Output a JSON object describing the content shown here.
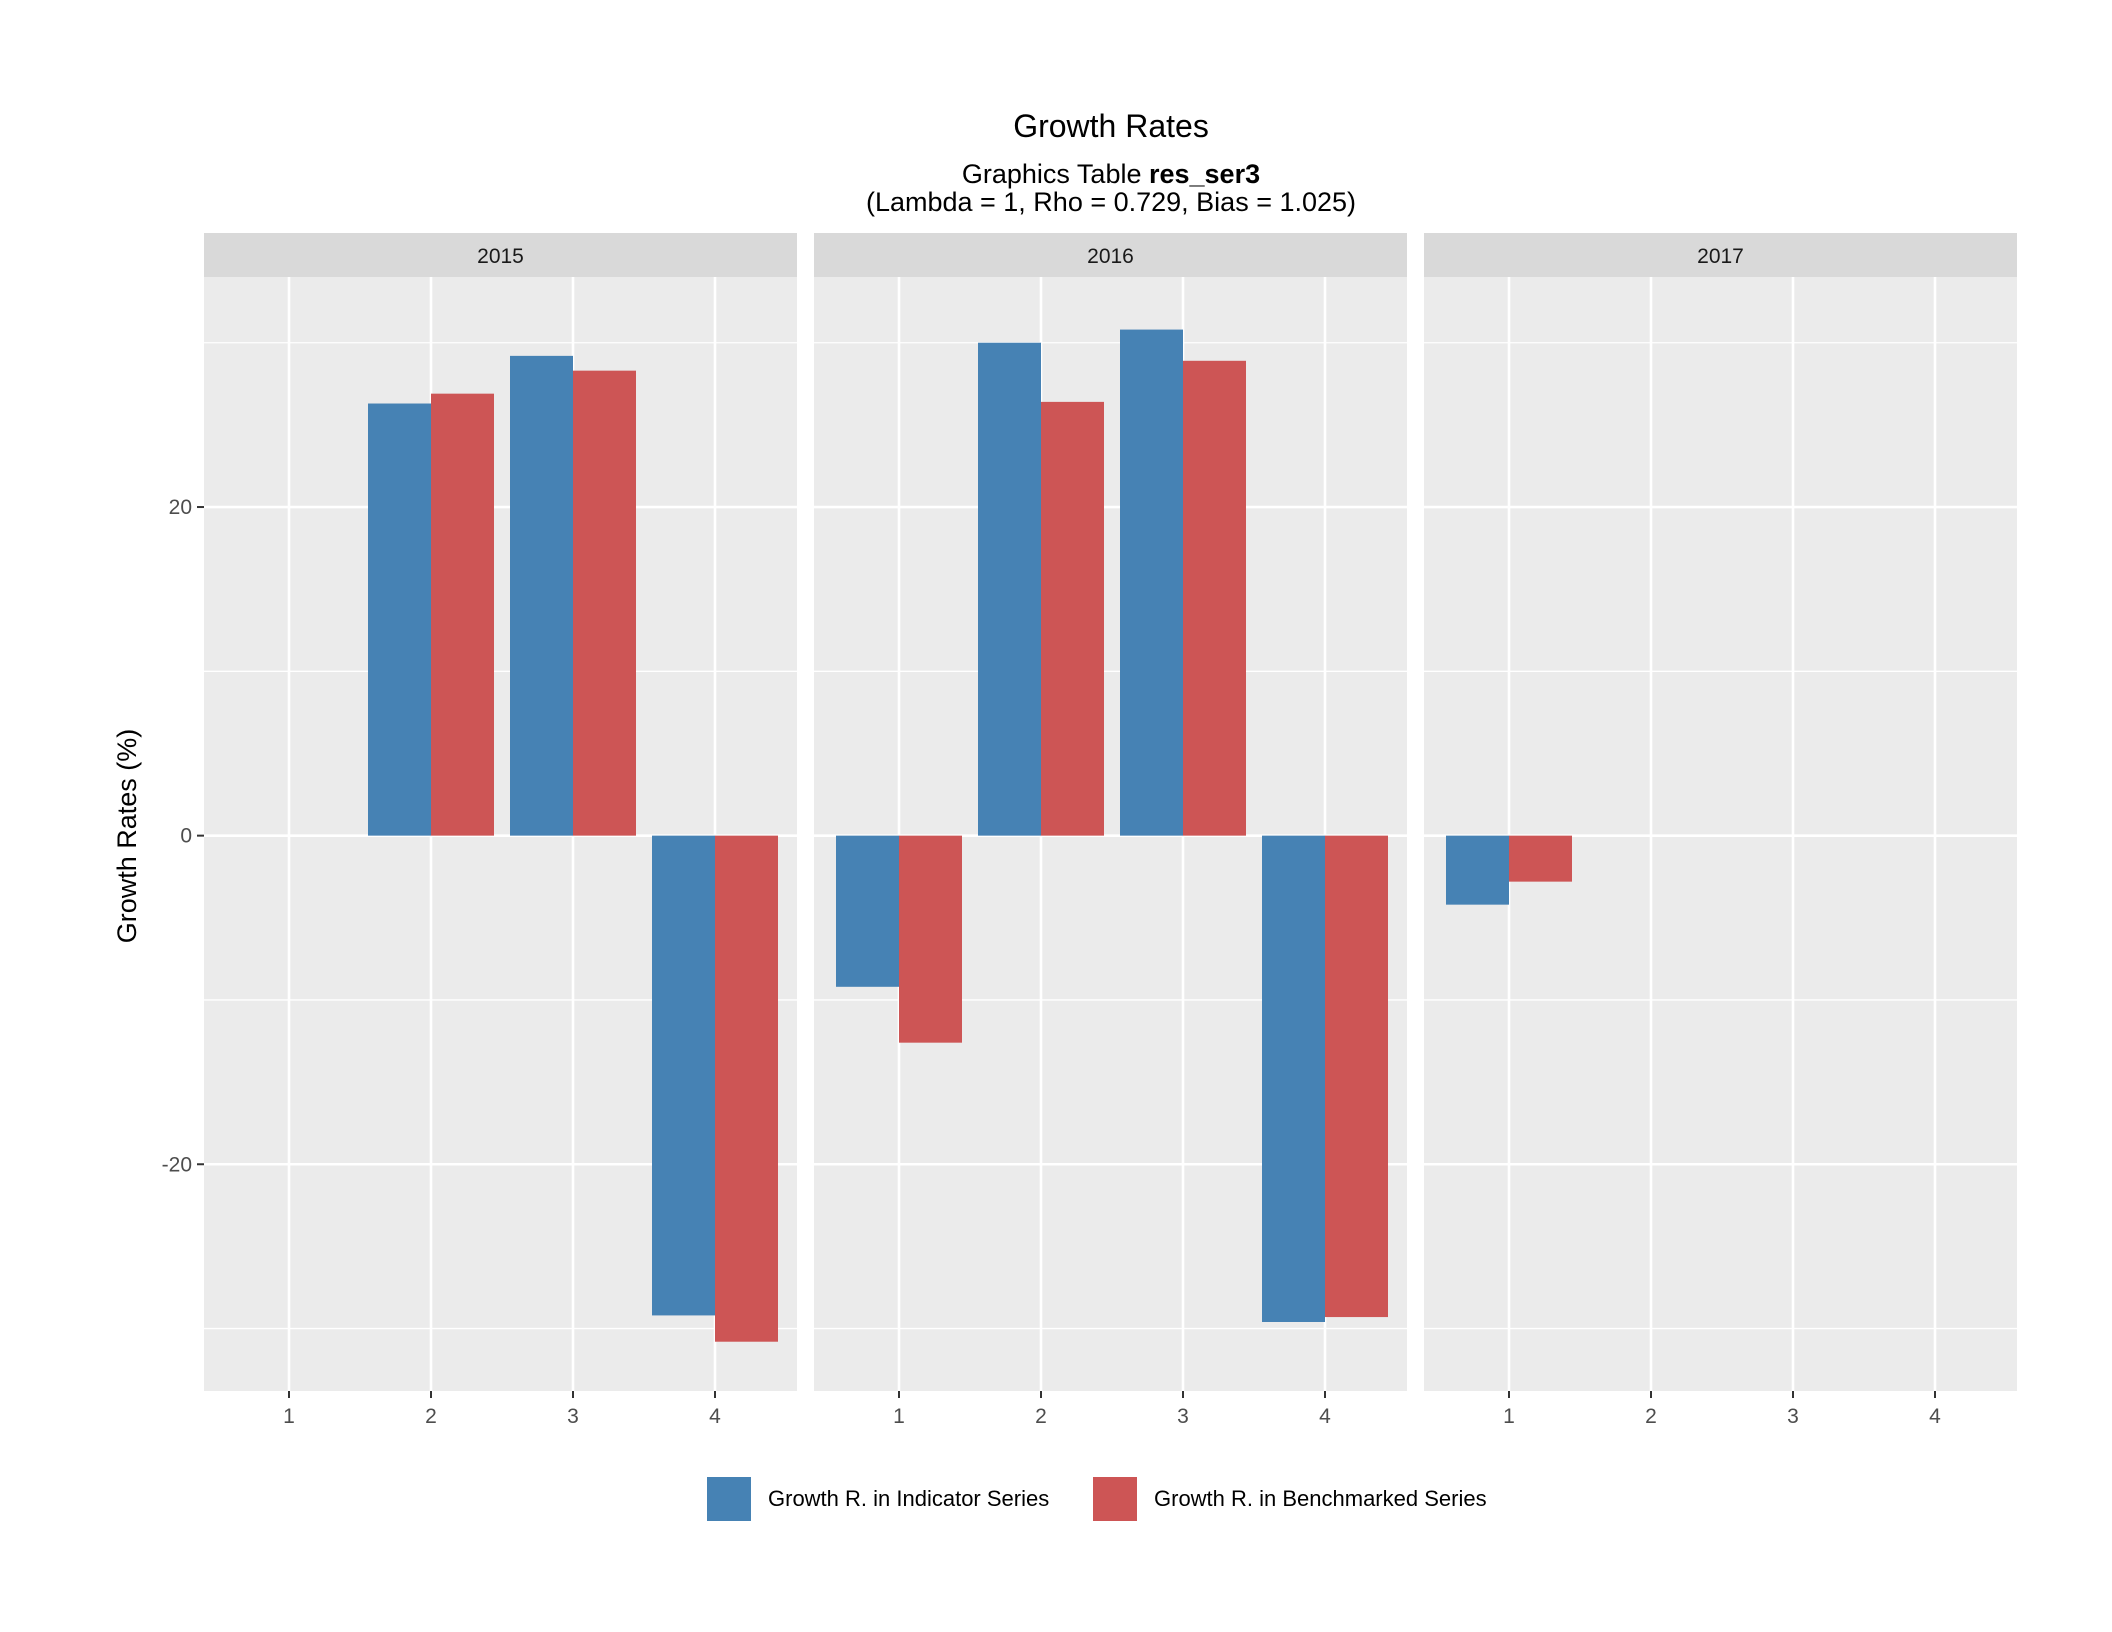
{
  "chart_data": {
    "type": "bar",
    "title": "Growth Rates",
    "subtitle_prefix": "Graphics Table ",
    "subtitle_bold": "res_ser3",
    "subtitle_line2": "(Lambda = 1, Rho = 0.729, Bias = 1.025)",
    "xlabel": "",
    "ylabel": "Growth Rates (%)",
    "ylim": [
      -33.8,
      34.0
    ],
    "y_ticks": [
      {
        "value": 20,
        "label": "20"
      },
      {
        "value": 0,
        "label": "0"
      },
      {
        "value": -20,
        "label": "-20"
      }
    ],
    "y_minor_gridlines": [
      30,
      10,
      -10,
      -30
    ],
    "x_categories": [
      "1",
      "2",
      "3",
      "4"
    ],
    "grid": true,
    "legend_position": "bottom",
    "colors": {
      "panel_background": "#EBEBEB",
      "strip_background": "#D9D9D9",
      "grid": "#FFFFFF",
      "indicator": "#4682B4",
      "benchmarked": "#CD5555"
    },
    "legend": [
      {
        "label": "Growth R. in Indicator Series",
        "color": "#4682B4"
      },
      {
        "label": "Growth R. in Benchmarked Series",
        "color": "#CD5555"
      }
    ],
    "panels": [
      {
        "label": "2015",
        "series": [
          {
            "key": "indicator",
            "values": [
              null,
              26.3,
              29.2,
              -29.2
            ]
          },
          {
            "key": "benchmarked",
            "values": [
              null,
              26.9,
              28.3,
              -30.8
            ]
          }
        ]
      },
      {
        "label": "2016",
        "series": [
          {
            "key": "indicator",
            "values": [
              -9.2,
              30.0,
              30.8,
              -29.6
            ]
          },
          {
            "key": "benchmarked",
            "values": [
              -12.6,
              26.4,
              28.9,
              -29.3
            ]
          }
        ]
      },
      {
        "label": "2017",
        "series": [
          {
            "key": "indicator",
            "values": [
              -4.2,
              null,
              null,
              null
            ]
          },
          {
            "key": "benchmarked",
            "values": [
              -2.8,
              null,
              null,
              null
            ]
          }
        ]
      }
    ]
  }
}
